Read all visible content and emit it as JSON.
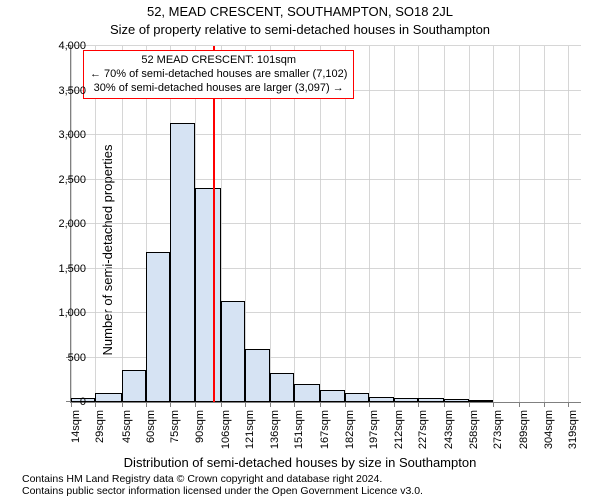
{
  "title_main": "52, MEAD CRESCENT, SOUTHAMPTON, SO18 2JL",
  "title_sub": "Size of property relative to semi-detached houses in Southampton",
  "ylabel": "Number of semi-detached properties",
  "xlabel": "Distribution of semi-detached houses by size in Southampton",
  "footnote_line1": "Contains HM Land Registry data © Crown copyright and database right 2024.",
  "footnote_line2": "Contains public sector information licensed under the Open Government Licence v3.0.",
  "annotation": {
    "line1": "52 MEAD CRESCENT: 101sqm",
    "line2": "← 70% of semi-detached houses are smaller (7,102)",
    "line3": "30% of semi-detached houses are larger (3,097) →"
  },
  "chart": {
    "type": "histogram",
    "background_color": "#ffffff",
    "grid_color": "#cccccc",
    "axis_color": "#808080",
    "bar_fill": "#d6e3f3",
    "bar_border": "#000000",
    "ref_line_color": "#ff0000",
    "ref_line_x": 101,
    "annot_border": "#ff0000",
    "xlim": [
      14,
      327
    ],
    "ylim": [
      0,
      4000
    ],
    "yticks": [
      0,
      500,
      1000,
      1500,
      2000,
      2500,
      3000,
      3500,
      4000
    ],
    "xtick_labels": [
      "14sqm",
      "29sqm",
      "45sqm",
      "60sqm",
      "75sqm",
      "90sqm",
      "106sqm",
      "121sqm",
      "136sqm",
      "151sqm",
      "167sqm",
      "182sqm",
      "197sqm",
      "212sqm",
      "227sqm",
      "243sqm",
      "258sqm",
      "273sqm",
      "289sqm",
      "304sqm",
      "319sqm"
    ],
    "xtick_positions": [
      14,
      29,
      45,
      60,
      75,
      90,
      106,
      121,
      136,
      151,
      167,
      182,
      197,
      212,
      227,
      243,
      258,
      273,
      289,
      304,
      319
    ],
    "bars": [
      {
        "x0": 14,
        "x1": 29,
        "y": 40
      },
      {
        "x0": 29,
        "x1": 45,
        "y": 100
      },
      {
        "x0": 45,
        "x1": 60,
        "y": 360
      },
      {
        "x0": 60,
        "x1": 75,
        "y": 1690
      },
      {
        "x0": 75,
        "x1": 90,
        "y": 3130
      },
      {
        "x0": 90,
        "x1": 106,
        "y": 2400
      },
      {
        "x0": 106,
        "x1": 121,
        "y": 1130
      },
      {
        "x0": 121,
        "x1": 136,
        "y": 600
      },
      {
        "x0": 136,
        "x1": 151,
        "y": 330
      },
      {
        "x0": 151,
        "x1": 167,
        "y": 200
      },
      {
        "x0": 167,
        "x1": 182,
        "y": 130
      },
      {
        "x0": 182,
        "x1": 197,
        "y": 100
      },
      {
        "x0": 197,
        "x1": 212,
        "y": 60
      },
      {
        "x0": 212,
        "x1": 227,
        "y": 40
      },
      {
        "x0": 227,
        "x1": 243,
        "y": 40
      },
      {
        "x0": 243,
        "x1": 258,
        "y": 30
      },
      {
        "x0": 258,
        "x1": 273,
        "y": 20
      },
      {
        "x0": 273,
        "x1": 289,
        "y": 0
      },
      {
        "x0": 289,
        "x1": 304,
        "y": 0
      },
      {
        "x0": 304,
        "x1": 319,
        "y": 0
      }
    ],
    "title_fontsize": 13,
    "label_fontsize": 13,
    "tick_fontsize": 11,
    "footnote_fontsize": 10.5,
    "annot_fontsize": 11
  }
}
